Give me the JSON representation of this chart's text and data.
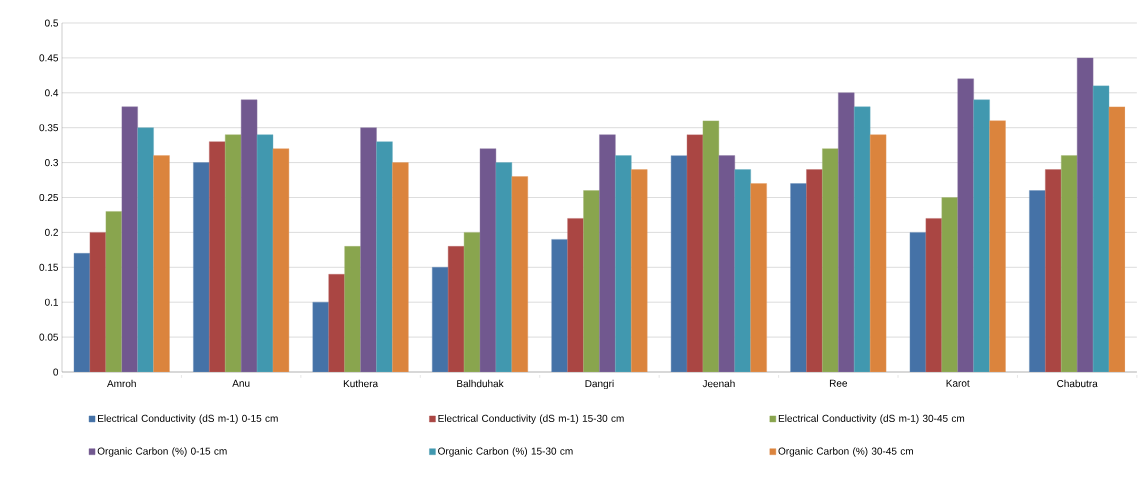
{
  "chart_data": {
    "type": "bar",
    "categories": [
      "Amroh",
      "Anu",
      "Kuthera",
      "Balhduhak",
      "Dangri",
      "Jeenah",
      "Ree",
      "Karot",
      "Chabutra"
    ],
    "series": [
      {
        "name": "Electrical Conductivity (dS m-1) 0-15 cm",
        "color": "#4572a7",
        "values": [
          0.17,
          0.3,
          0.1,
          0.15,
          0.19,
          0.31,
          0.27,
          0.2,
          0.26
        ]
      },
      {
        "name": "Electrical Conductivity (dS m-1) 15-30 cm",
        "color": "#aa4643",
        "values": [
          0.2,
          0.33,
          0.14,
          0.18,
          0.22,
          0.34,
          0.29,
          0.22,
          0.29
        ]
      },
      {
        "name": "Electrical Conductivity (dS m-1)  30-45 cm",
        "color": "#89a54e",
        "values": [
          0.23,
          0.34,
          0.18,
          0.2,
          0.26,
          0.36,
          0.32,
          0.25,
          0.31
        ]
      },
      {
        "name": "Organic Carbon (%) 0-15 cm",
        "color": "#71588f",
        "values": [
          0.38,
          0.39,
          0.35,
          0.32,
          0.34,
          0.31,
          0.4,
          0.42,
          0.45
        ]
      },
      {
        "name": "Organic Carbon (%) 15-30 cm",
        "color": "#4198af",
        "values": [
          0.35,
          0.34,
          0.33,
          0.3,
          0.31,
          0.29,
          0.38,
          0.39,
          0.41
        ]
      },
      {
        "name": "Organic Carbon (%)  30-45 cm",
        "color": "#db843d",
        "values": [
          0.31,
          0.32,
          0.3,
          0.28,
          0.29,
          0.27,
          0.34,
          0.36,
          0.38
        ]
      }
    ],
    "ylim": [
      0,
      0.5
    ],
    "yticks": [
      0,
      0.05,
      0.1,
      0.15,
      0.2,
      0.25,
      0.3,
      0.35,
      0.4,
      0.45,
      0.5
    ],
    "grid": "y",
    "legend": "bottom"
  }
}
